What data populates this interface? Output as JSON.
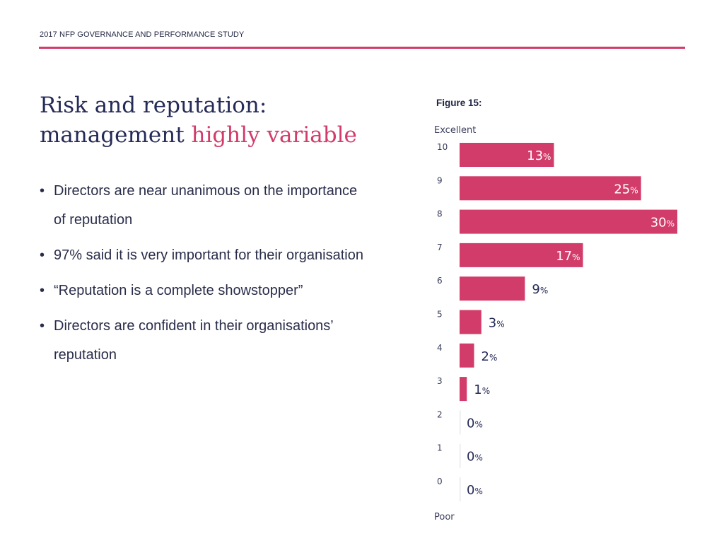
{
  "header": {
    "text": "2017 NFP GOVERNANCE AND PERFORMANCE STUDY"
  },
  "title": {
    "line1": "Risk and reputation:",
    "line2_main": "management",
    "line2_accent": "highly variable"
  },
  "bullets": [
    {
      "text": "Directors are near unanimous on the importance of reputation"
    },
    {
      "text": "97% said it is very important for their organisation"
    },
    {
      "text": "“Reputation is a complete showstopper”"
    },
    {
      "text": "Directors are confident in their organisations’ reputation"
    }
  ],
  "figure": {
    "label": "Figure 15:"
  },
  "colors": {
    "accent": "#d23c6a",
    "title": "#252a57",
    "text": "#2a2d4a"
  },
  "chart_data": {
    "type": "bar",
    "orientation": "horizontal",
    "top_label": "Excellent",
    "bottom_label": "Poor",
    "categories": [
      "10",
      "9",
      "8",
      "7",
      "6",
      "5",
      "4",
      "3",
      "2",
      "1",
      "0"
    ],
    "values": [
      13,
      25,
      30,
      17,
      9,
      3,
      2,
      1,
      0,
      0,
      0
    ],
    "value_suffix": "%",
    "xlim": [
      0,
      30
    ],
    "bar_color": "#d23c6a"
  }
}
